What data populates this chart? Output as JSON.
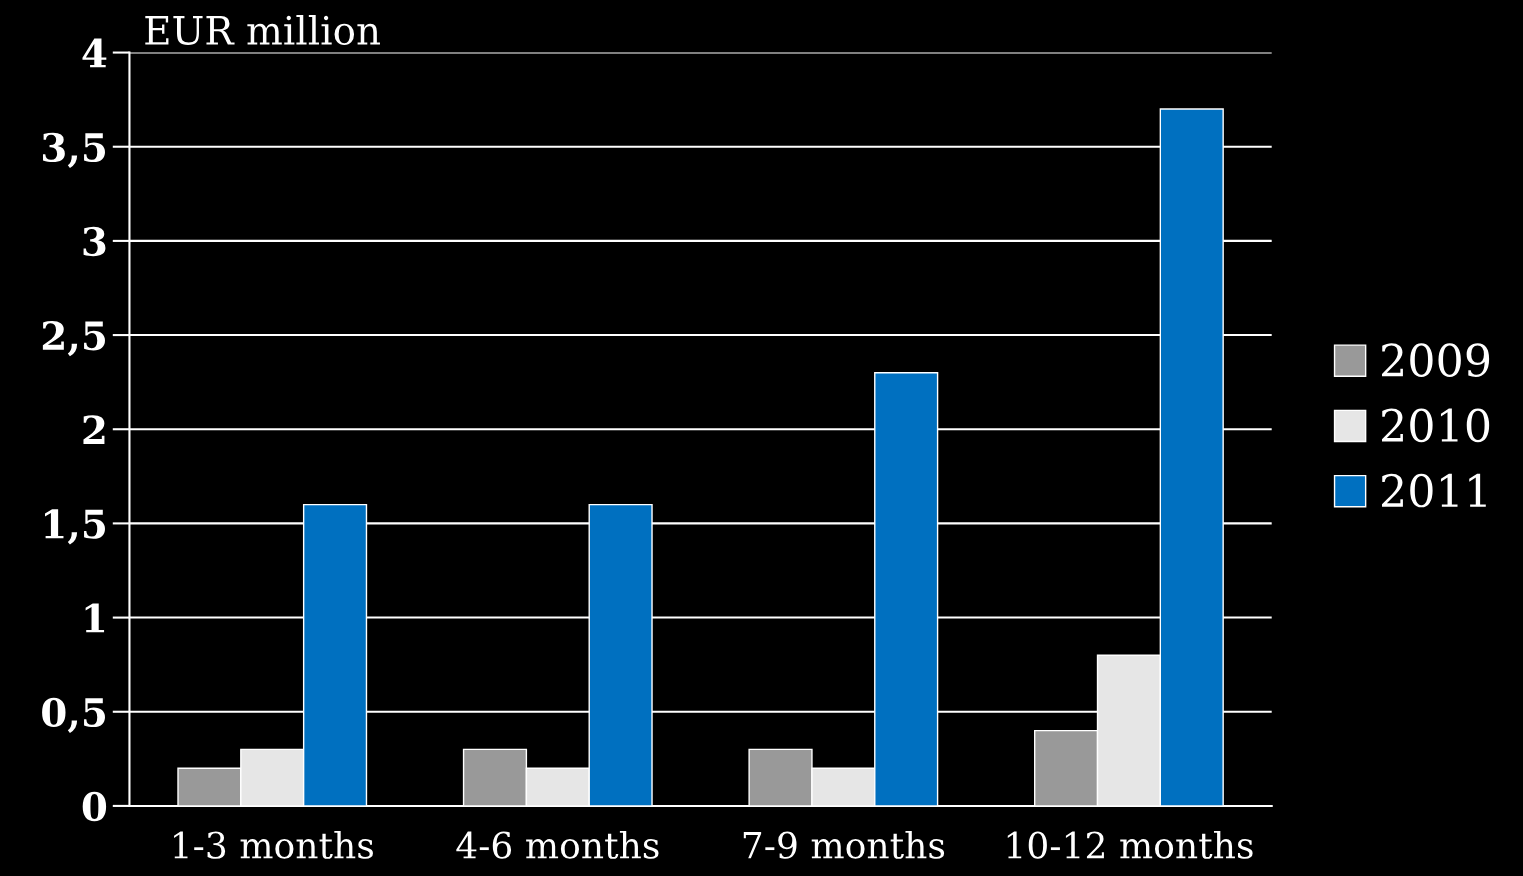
{
  "chart_data": {
    "type": "bar",
    "ylabel": "EUR million",
    "categories": [
      "1-3 months",
      "4-6 months",
      "7-9 months",
      "10-12 months"
    ],
    "series": [
      {
        "name": "2009",
        "color": "#999999",
        "values": [
          0.2,
          0.3,
          0.3,
          0.4
        ]
      },
      {
        "name": "2010",
        "color": "#e6e6e6",
        "values": [
          0.3,
          0.2,
          0.2,
          0.8
        ]
      },
      {
        "name": "2011",
        "color": "#0070c0",
        "values": [
          1.6,
          1.6,
          2.3,
          3.7
        ]
      }
    ],
    "ylim": [
      0,
      4
    ],
    "yticks": [
      0,
      {
        "value": 0.5,
        "label": "0,5"
      },
      1,
      {
        "value": 1.5,
        "label": "1,5"
      },
      2,
      {
        "value": 2.5,
        "label": "2,5"
      },
      3,
      {
        "value": 3.5,
        "label": "3,5"
      },
      4
    ],
    "grid": "y",
    "legend": "right"
  }
}
